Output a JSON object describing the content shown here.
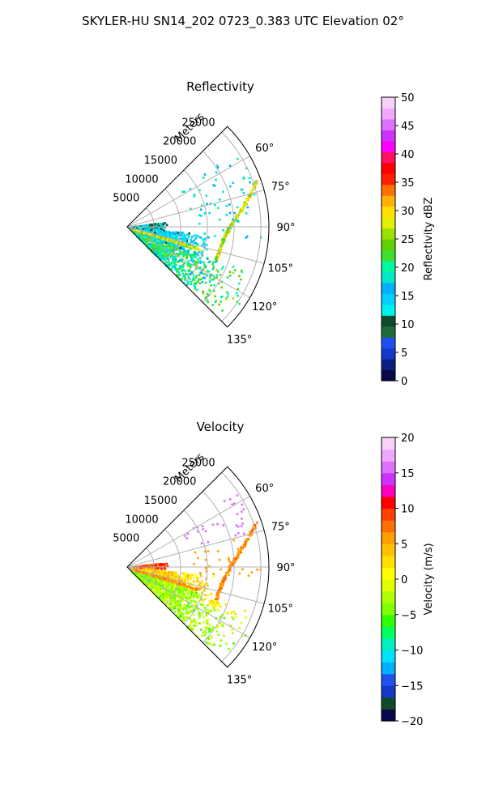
{
  "figure_title": "SKYLER-HU  SN14_202  0723_0.383 UTC Elevation 02°",
  "chart_data": [
    {
      "type": "heatmap",
      "projection": "polar-sector",
      "title": "Reflectivity",
      "radial_label": "Meters",
      "radial_ticks": [
        "5000",
        "10000",
        "15000",
        "20000",
        "25000"
      ],
      "radial_values": [
        5000,
        10000,
        15000,
        20000,
        25000
      ],
      "rmax": 26500,
      "angle_ticks": [
        "60°",
        "75°",
        "90°",
        "105°",
        "120°",
        "135°"
      ],
      "angle_values": [
        60,
        75,
        90,
        105,
        120,
        135
      ],
      "theta_range": [
        45,
        135
      ],
      "colorbar": {
        "label": "Reflectivity dBZ",
        "min": 0,
        "max": 50,
        "ticks": [
          "0",
          "5",
          "10",
          "15",
          "20",
          "25",
          "30",
          "35",
          "40",
          "45",
          "50"
        ],
        "colors": [
          "#08084a",
          "#0a1f80",
          "#1538c8",
          "#2050f0",
          "#1f6a3a",
          "#0f4a2a",
          "#00f0f0",
          "#00d0ff",
          "#00b0ff",
          "#00e8c8",
          "#00f8a0",
          "#40e030",
          "#60d000",
          "#9ce000",
          "#e0f000",
          "#ffe000",
          "#ffb000",
          "#ff7000",
          "#ff2000",
          "#ff0000",
          "#ff1060",
          "#ff00ff",
          "#cc33ff",
          "#e070ff",
          "#f0a8ff",
          "#f8d0f8"
        ]
      }
    },
    {
      "type": "heatmap",
      "projection": "polar-sector",
      "title": "Velocity",
      "radial_label": "Meters",
      "radial_ticks": [
        "5000",
        "10000",
        "15000",
        "20000",
        "25000"
      ],
      "radial_values": [
        5000,
        10000,
        15000,
        20000,
        25000
      ],
      "rmax": 26500,
      "angle_ticks": [
        "60°",
        "75°",
        "90°",
        "105°",
        "120°",
        "135°"
      ],
      "angle_values": [
        60,
        75,
        90,
        105,
        120,
        135
      ],
      "theta_range": [
        45,
        135
      ],
      "colorbar": {
        "label": "Velocity (m/s)",
        "min": -20,
        "max": 20,
        "ticks": [
          "−20",
          "−15",
          "−10",
          "−5",
          "0",
          "5",
          "10",
          "15",
          "20"
        ],
        "colors": [
          "#08084a",
          "#0f4a2a",
          "#1538c8",
          "#2050f0",
          "#00b0ff",
          "#00e0ff",
          "#00f0c0",
          "#00ff60",
          "#30ff00",
          "#80ff00",
          "#b0ff00",
          "#e0ff00",
          "#ffff00",
          "#ffe000",
          "#ffc000",
          "#ffa000",
          "#ff7000",
          "#ff4000",
          "#ff0000",
          "#ff00c0",
          "#cc33ff",
          "#e070ff",
          "#f0a8ff",
          "#f8d0f8"
        ]
      }
    }
  ]
}
